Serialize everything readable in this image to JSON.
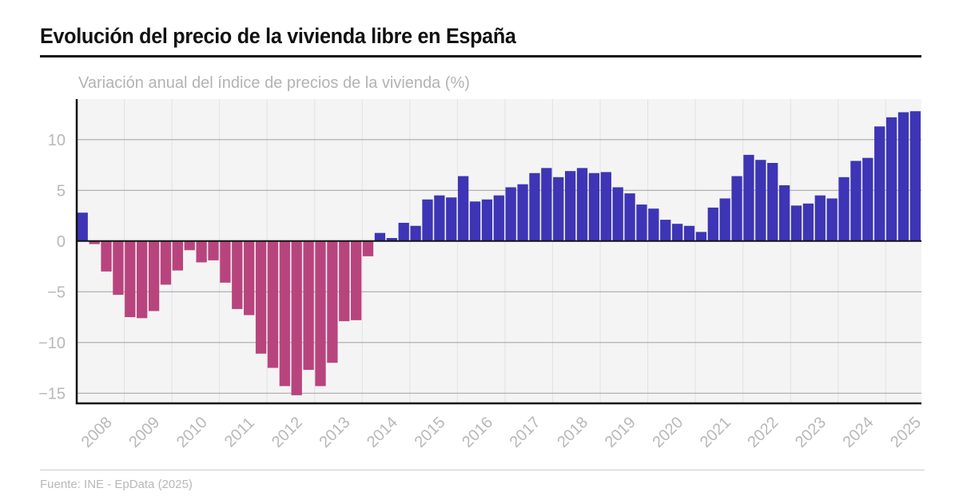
{
  "header": {
    "title": "Evolución del precio de la vivienda libre en España",
    "subtitle": "Variación anual del índice de precios de la vivienda (%)"
  },
  "footer": {
    "source": "Fuente: INE - EpData (2025)"
  },
  "colors": {
    "positive": "#3d35b5",
    "negative": "#b8447e",
    "plot_background": "#f4f4f4",
    "gridline": "#a8a8a8",
    "vertical_gridline": "#e2e2e2",
    "axis": "#111111",
    "tick_label": "#b8b8b8"
  },
  "chart_data": {
    "type": "bar",
    "title": "Evolución del precio de la vivienda libre en España",
    "subtitle": "Variación anual del índice de precios de la vivienda (%)",
    "xlabel": "",
    "ylabel": "Variación anual del índice de precios de la vivienda (%)",
    "frequency": "quarterly",
    "start": "2008 Q1",
    "end": "2025 Q3",
    "ylim": [
      -16,
      14
    ],
    "yticks": [
      -15,
      -10,
      -5,
      0,
      5,
      10
    ],
    "ytick_labels": [
      "−15",
      "−10",
      "−5",
      "0",
      "5",
      "10"
    ],
    "xtick_labels": [
      "2008",
      "2009",
      "2010",
      "2011",
      "2012",
      "2013",
      "2014",
      "2015",
      "2016",
      "2017",
      "2018",
      "2019",
      "2020",
      "2021",
      "2022",
      "2023",
      "2024",
      "2025"
    ],
    "grid": true,
    "legend": "none",
    "categories": [
      "2008 T1",
      "2008 T2",
      "2008 T3",
      "2008 T4",
      "2009 T1",
      "2009 T2",
      "2009 T3",
      "2009 T4",
      "2010 T1",
      "2010 T2",
      "2010 T3",
      "2010 T4",
      "2011 T1",
      "2011 T2",
      "2011 T3",
      "2011 T4",
      "2012 T1",
      "2012 T2",
      "2012 T3",
      "2012 T4",
      "2013 T1",
      "2013 T2",
      "2013 T3",
      "2013 T4",
      "2014 T1",
      "2014 T2",
      "2014 T3",
      "2014 T4",
      "2015 T1",
      "2015 T2",
      "2015 T3",
      "2015 T4",
      "2016 T1",
      "2016 T2",
      "2016 T3",
      "2016 T4",
      "2017 T1",
      "2017 T2",
      "2017 T3",
      "2017 T4",
      "2018 T1",
      "2018 T2",
      "2018 T3",
      "2018 T4",
      "2019 T1",
      "2019 T2",
      "2019 T3",
      "2019 T4",
      "2020 T1",
      "2020 T2",
      "2020 T3",
      "2020 T4",
      "2021 T1",
      "2021 T2",
      "2021 T3",
      "2021 T4",
      "2022 T1",
      "2022 T2",
      "2022 T3",
      "2022 T4",
      "2023 T1",
      "2023 T2",
      "2023 T3",
      "2023 T4",
      "2024 T1",
      "2024 T2",
      "2024 T3",
      "2024 T4",
      "2025 T1",
      "2025 T2",
      "2025 T3"
    ],
    "values": [
      2.8,
      -0.3,
      -3.0,
      -5.3,
      -7.5,
      -7.6,
      -6.9,
      -4.3,
      -2.9,
      -0.9,
      -2.1,
      -1.9,
      -4.1,
      -6.7,
      -7.3,
      -11.1,
      -12.5,
      -14.3,
      -15.2,
      -12.7,
      -14.3,
      -12.0,
      -7.9,
      -7.8,
      -1.5,
      0.8,
      0.3,
      1.8,
      1.5,
      4.1,
      4.5,
      4.3,
      6.4,
      3.9,
      4.1,
      4.5,
      5.3,
      5.6,
      6.7,
      7.2,
      6.3,
      6.9,
      7.2,
      6.7,
      6.8,
      5.3,
      4.7,
      3.6,
      3.2,
      2.1,
      1.7,
      1.5,
      0.9,
      3.3,
      4.2,
      6.4,
      8.5,
      8.0,
      7.7,
      5.5,
      3.5,
      3.7,
      4.5,
      4.2,
      6.3,
      7.9,
      8.2,
      11.3,
      12.2,
      12.7,
      12.8
    ]
  }
}
